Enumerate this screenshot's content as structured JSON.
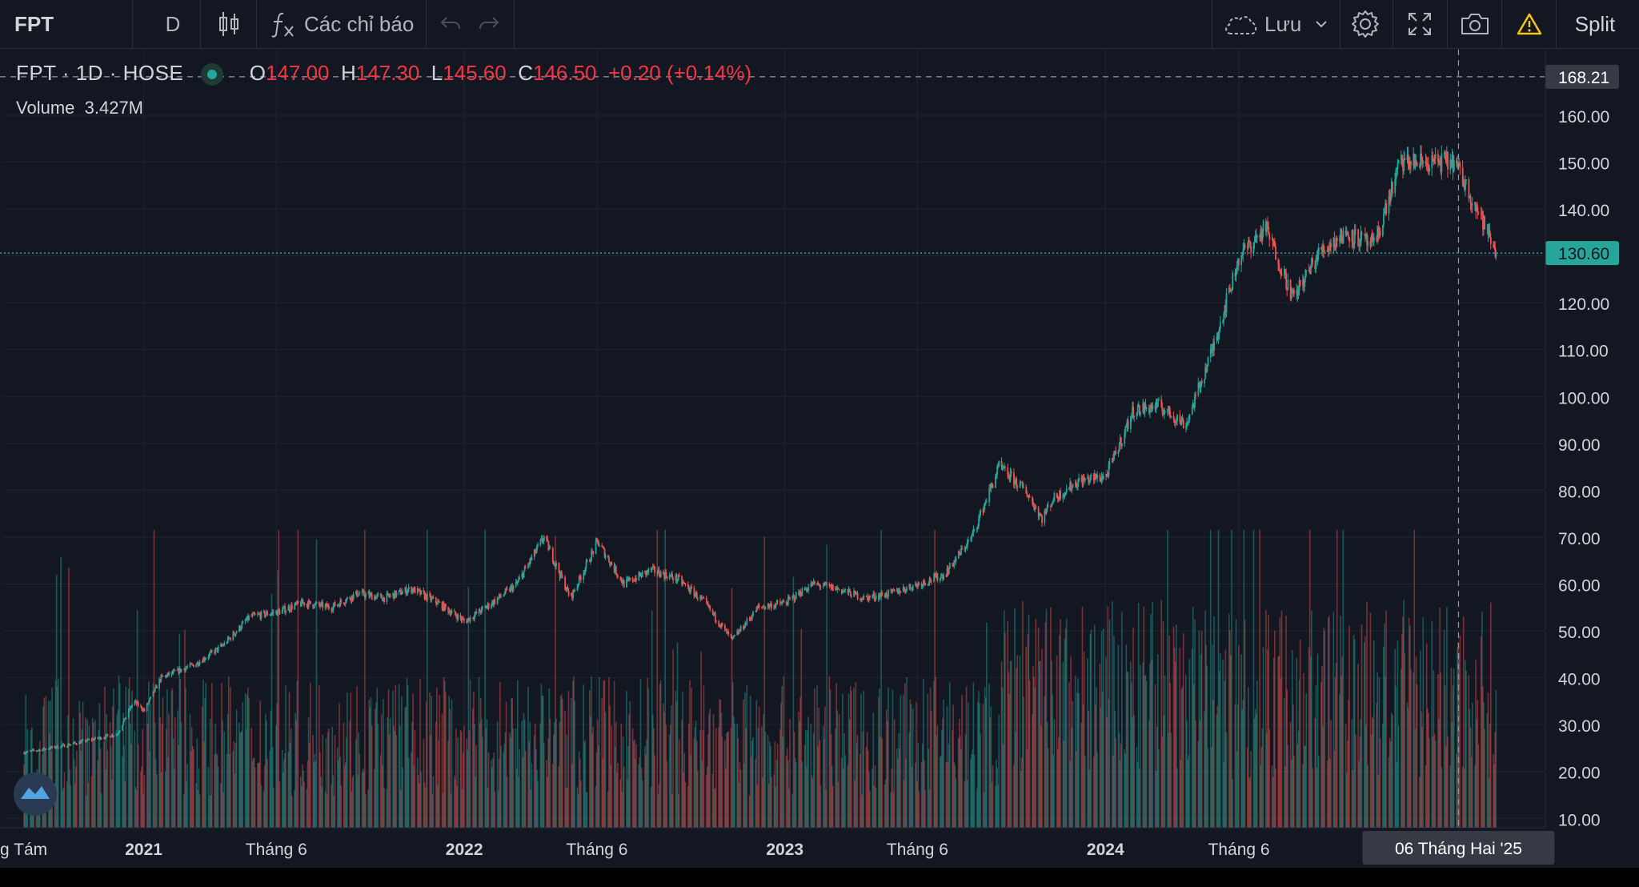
{
  "toolbar": {
    "symbol": "FPT",
    "interval": "D",
    "indicators_label": "Các chỉ báo",
    "save_label": "Lưu",
    "split_label": "Split"
  },
  "legend": {
    "title": "FPT · 1D · HOSE",
    "open_label": "O",
    "open": "147.00",
    "high_label": "H",
    "high": "147.30",
    "low_label": "L",
    "low": "145.60",
    "close_label": "C",
    "close": "146.50",
    "change": "+0.20 (+0.14%)",
    "volume_label": "Volume",
    "volume_value": "3.427M"
  },
  "chart_data": {
    "type": "candlestick",
    "symbol": "FPT",
    "interval": "1D",
    "exchange": "HOSE",
    "price_axis": {
      "ticks": [
        "160.00",
        "150.00",
        "140.00",
        "130.00",
        "120.00",
        "110.00",
        "100.00",
        "90.00",
        "80.00",
        "70.00",
        "60.00",
        "50.00",
        "40.00",
        "30.00",
        "20.00",
        "10.00"
      ],
      "range": [
        8,
        174
      ]
    },
    "time_axis": {
      "labels": [
        "g Tám",
        "2021",
        "Tháng 6",
        "2022",
        "Tháng 6",
        "2023",
        "Tháng 6",
        "2024",
        "Tháng 6",
        "06 Tháng Hai '25"
      ]
    },
    "crosshair": {
      "price": "168.21",
      "date": "06 Tháng Hai '25"
    },
    "last_price": "130.60",
    "colors": {
      "up": "#26a69a",
      "down": "#ef5350",
      "background": "#131722",
      "last_price": "#26a69a"
    },
    "price_path": [
      [
        "2020-08-15",
        24
      ],
      [
        "2020-10-01",
        25.5
      ],
      [
        "2020-12-01",
        28
      ],
      [
        "2020-12-20",
        35
      ],
      [
        "2021-01-01",
        33
      ],
      [
        "2021-01-20",
        40
      ],
      [
        "2021-03-01",
        43
      ],
      [
        "2021-04-01",
        47
      ],
      [
        "2021-05-01",
        53
      ],
      [
        "2021-06-01",
        54
      ],
      [
        "2021-07-01",
        56
      ],
      [
        "2021-08-01",
        55
      ],
      [
        "2021-09-01",
        58
      ],
      [
        "2021-10-01",
        57
      ],
      [
        "2021-11-01",
        59
      ],
      [
        "2021-12-01",
        56
      ],
      [
        "2022-01-01",
        52
      ],
      [
        "2022-02-01",
        56
      ],
      [
        "2022-03-01",
        60
      ],
      [
        "2022-04-01",
        70
      ],
      [
        "2022-05-01",
        57
      ],
      [
        "2022-06-01",
        69
      ],
      [
        "2022-07-01",
        60
      ],
      [
        "2022-08-01",
        63
      ],
      [
        "2022-09-01",
        61
      ],
      [
        "2022-10-01",
        56
      ],
      [
        "2022-11-01",
        48
      ],
      [
        "2022-12-01",
        55
      ],
      [
        "2023-01-01",
        56
      ],
      [
        "2023-02-01",
        60
      ],
      [
        "2023-03-01",
        59
      ],
      [
        "2023-04-01",
        57
      ],
      [
        "2023-05-01",
        58
      ],
      [
        "2023-06-01",
        60
      ],
      [
        "2023-07-01",
        62
      ],
      [
        "2023-08-01",
        70
      ],
      [
        "2023-09-01",
        85
      ],
      [
        "2023-10-01",
        80
      ],
      [
        "2023-10-20",
        74
      ],
      [
        "2023-11-01",
        78
      ],
      [
        "2023-12-01",
        82
      ],
      [
        "2024-01-01",
        83
      ],
      [
        "2024-02-01",
        97
      ],
      [
        "2024-03-01",
        98
      ],
      [
        "2024-04-01",
        94
      ],
      [
        "2024-05-01",
        110
      ],
      [
        "2024-06-01",
        130
      ],
      [
        "2024-07-01",
        136
      ],
      [
        "2024-08-01",
        121
      ],
      [
        "2024-09-01",
        131
      ],
      [
        "2024-10-01",
        135
      ],
      [
        "2024-11-01",
        132
      ],
      [
        "2024-12-01",
        150
      ],
      [
        "2025-01-01",
        150
      ],
      [
        "2025-02-01",
        150
      ],
      [
        "2025-02-06",
        148
      ],
      [
        "2025-03-01",
        139
      ],
      [
        "2025-03-20",
        130.6
      ]
    ]
  }
}
